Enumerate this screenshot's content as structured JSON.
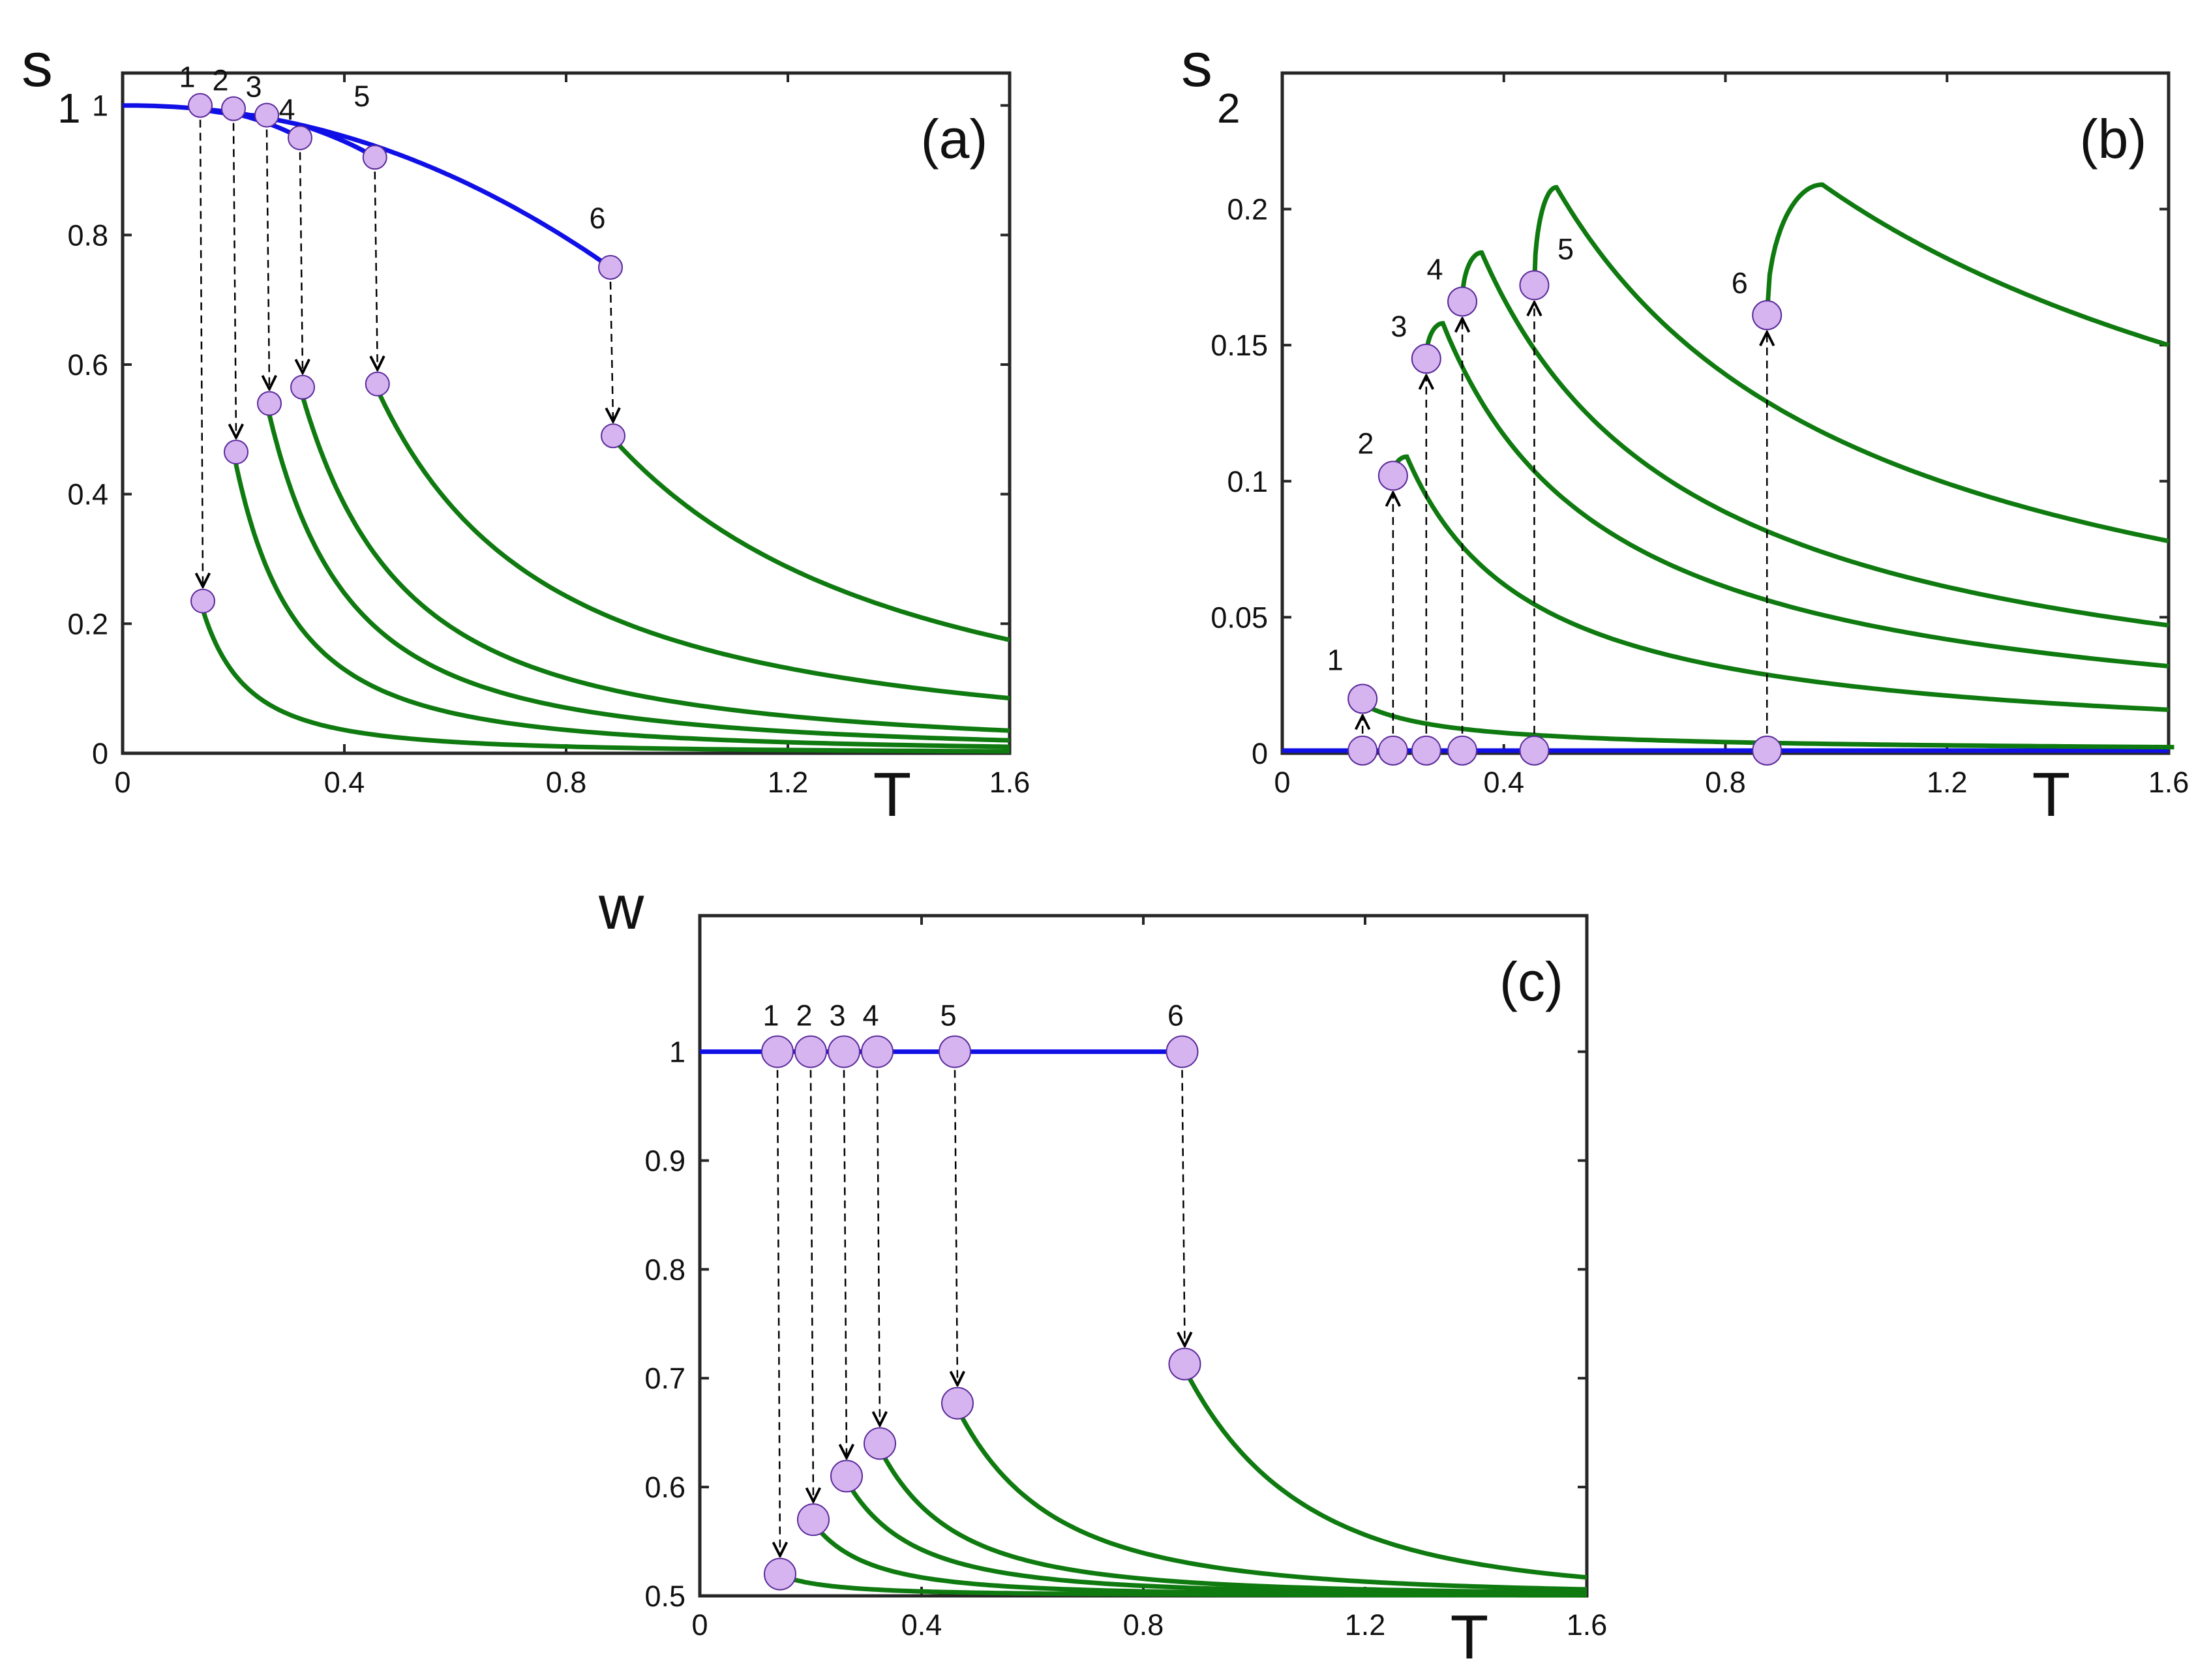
{
  "chart_data": [
    {
      "id": "a",
      "type": "line",
      "panel_label": "(a)",
      "xlabel": "T",
      "ylabel": "s",
      "ylabel_sub": "1",
      "xlim": [
        0,
        1.6
      ],
      "ylim": [
        0,
        1.05
      ],
      "xticks": [
        0,
        0.4,
        0.8,
        1.2,
        1.6
      ],
      "xtick_labels": [
        "0",
        "0.4",
        "0.8",
        "1.2",
        "1.6"
      ],
      "yticks": [
        0,
        0.2,
        0.4,
        0.6,
        0.8,
        1
      ],
      "ytick_labels": [
        "0",
        "0.2",
        "0.4",
        "0.6",
        "0.8",
        "1"
      ],
      "colors": {
        "upper": "#1010e6",
        "lower": "#0f7a0f",
        "marker": "#d6b4f0",
        "marker_edge": "#5a2a9a"
      },
      "series": [
        {
          "name": "1",
          "Tc": 0.14,
          "upper_value": 1.0,
          "lower_value": 0.235
        },
        {
          "name": "2",
          "Tc": 0.2,
          "upper_value": 0.995,
          "lower_value": 0.465
        },
        {
          "name": "3",
          "Tc": 0.26,
          "upper_value": 0.985,
          "lower_value": 0.54
        },
        {
          "name": "4",
          "Tc": 0.32,
          "upper_value": 0.95,
          "lower_value": 0.565
        },
        {
          "name": "5",
          "Tc": 0.455,
          "upper_value": 0.92,
          "lower_value": 0.57
        },
        {
          "name": "6",
          "Tc": 0.88,
          "upper_value": 0.75,
          "lower_value": 0.49
        }
      ],
      "lower_end_values": [
        0.003,
        0.01,
        0.02,
        0.035,
        0.085,
        0.175
      ],
      "jump_direction": "down"
    },
    {
      "id": "b",
      "type": "line",
      "panel_label": "(b)",
      "xlabel": "T",
      "ylabel": "s",
      "ylabel_sub": "2",
      "xlim": [
        0,
        1.6
      ],
      "ylim": [
        0,
        0.25
      ],
      "xticks": [
        0,
        0.4,
        0.8,
        1.2,
        1.6
      ],
      "xtick_labels": [
        "0",
        "0.4",
        "0.8",
        "1.2",
        "1.6"
      ],
      "yticks": [
        0,
        0.05,
        0.1,
        0.15,
        0.2
      ],
      "ytick_labels": [
        "0",
        "0.05",
        "0.1",
        "0.15",
        "0.2"
      ],
      "colors": {
        "upper": "#1010e6",
        "lower": "#0f7a0f",
        "marker": "#d6b4f0",
        "marker_edge": "#5a2a9a"
      },
      "series": [
        {
          "name": "1",
          "Tc": 0.145,
          "start_value": 0.02,
          "peak_value": 0.02,
          "end_value": 0.002
        },
        {
          "name": "2",
          "Tc": 0.2,
          "start_value": 0.102,
          "peak_value": 0.109,
          "end_value": 0.016
        },
        {
          "name": "3",
          "Tc": 0.26,
          "start_value": 0.145,
          "peak_value": 0.158,
          "end_value": 0.032
        },
        {
          "name": "4",
          "Tc": 0.325,
          "start_value": 0.166,
          "peak_value": 0.184,
          "end_value": 0.047
        },
        {
          "name": "5",
          "Tc": 0.455,
          "start_value": 0.172,
          "peak_value": 0.208,
          "end_value": 0.078
        },
        {
          "name": "6",
          "Tc": 0.875,
          "start_value": 0.161,
          "peak_value": 0.209,
          "end_value": 0.15
        }
      ],
      "baseline_value": 0.001,
      "jump_direction": "up"
    },
    {
      "id": "c",
      "type": "line",
      "panel_label": "(c)",
      "xlabel": "T",
      "ylabel": "w",
      "ylabel_sub": "",
      "xlim": [
        0,
        1.6
      ],
      "ylim": [
        0.5,
        1.125
      ],
      "xticks": [
        0,
        0.4,
        0.8,
        1.2,
        1.6
      ],
      "xtick_labels": [
        "0",
        "0.4",
        "0.8",
        "1.2",
        "1.6"
      ],
      "yticks": [
        0.5,
        0.6,
        0.7,
        0.8,
        0.9,
        1
      ],
      "ytick_labels": [
        "0.5",
        "0.6",
        "0.7",
        "0.8",
        "0.9",
        "1"
      ],
      "colors": {
        "upper": "#1010e6",
        "lower": "#0f7a0f",
        "marker": "#d6b4f0",
        "marker_edge": "#5a2a9a"
      },
      "series": [
        {
          "name": "1",
          "Tc": 0.14,
          "upper_value": 1.0,
          "lower_value": 0.52
        },
        {
          "name": "2",
          "Tc": 0.2,
          "upper_value": 1.0,
          "lower_value": 0.57
        },
        {
          "name": "3",
          "Tc": 0.26,
          "upper_value": 1.0,
          "lower_value": 0.61
        },
        {
          "name": "4",
          "Tc": 0.32,
          "upper_value": 1.0,
          "lower_value": 0.64
        },
        {
          "name": "5",
          "Tc": 0.46,
          "upper_value": 1.0,
          "lower_value": 0.677
        },
        {
          "name": "6",
          "Tc": 0.87,
          "upper_value": 1.0,
          "lower_value": 0.713
        }
      ],
      "lower_end_values": [
        0.5005,
        0.501,
        0.502,
        0.503,
        0.506,
        0.517
      ],
      "jump_direction": "down"
    }
  ]
}
